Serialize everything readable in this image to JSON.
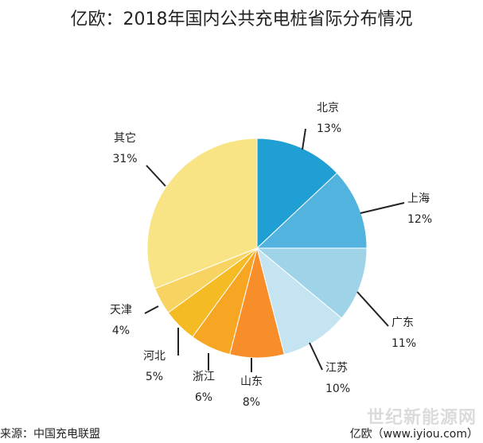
{
  "source_left": "来源：中国充电联盟",
  "source_right": "亿欧（www.iyiou.com）",
  "watermark": "世纪新能源网",
  "chart_data": {
    "type": "pie",
    "title": "亿欧：2018年国内公共充电桩省际分布情况",
    "slices": [
      {
        "label": "北京",
        "value": 13,
        "display": "13%",
        "color": "#1f9fd4"
      },
      {
        "label": "上海",
        "value": 12,
        "display": "12%",
        "color": "#52b3df"
      },
      {
        "label": "广东",
        "value": 11,
        "display": "11%",
        "color": "#9ed3e8"
      },
      {
        "label": "江苏",
        "value": 10,
        "display": "10%",
        "color": "#c5e4f1"
      },
      {
        "label": "山东",
        "value": 8,
        "display": "8%",
        "color": "#f78e2a"
      },
      {
        "label": "浙江",
        "value": 6,
        "display": "6%",
        "color": "#f6a623"
      },
      {
        "label": "河北",
        "value": 5,
        "display": "5%",
        "color": "#f4bb24"
      },
      {
        "label": "天津",
        "value": 4,
        "display": "4%",
        "color": "#f7d462"
      },
      {
        "label": "其它",
        "value": 31,
        "display": "31%",
        "color": "#f8e485"
      }
    ]
  }
}
